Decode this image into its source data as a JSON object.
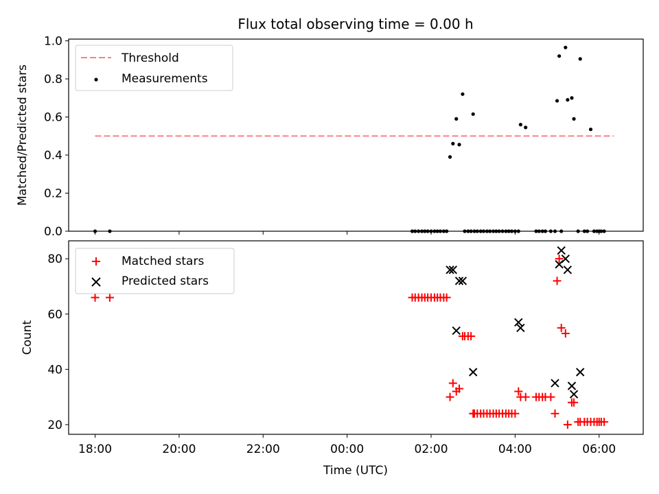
{
  "chart_data": [
    {
      "type": "scatter",
      "title": "Flux total observing time = 0.00 h",
      "xlabel": "",
      "ylabel": "Matched/Predicted stars",
      "xlim": [
        -0.63,
        13.05
      ],
      "ylim": [
        0.0,
        1.0
      ],
      "yticks": [
        0.0,
        0.2,
        0.4,
        0.6,
        0.8,
        1.0
      ],
      "ytick_labels": [
        "0.0",
        "0.2",
        "0.4",
        "0.6",
        "0.8",
        "1.0"
      ],
      "legend_location": "upper-left",
      "series": [
        {
          "name": "Threshold",
          "kind": "dashed-line",
          "color": "#ff7f7f",
          "x": [
            0.0,
            12.35
          ],
          "y": [
            0.5,
            0.5
          ]
        },
        {
          "name": "Measurements",
          "kind": "dot",
          "color": "#000000",
          "x": [
            0.0,
            0.35,
            7.55,
            7.62,
            7.7,
            7.78,
            7.85,
            7.92,
            8.0,
            8.08,
            8.15,
            8.22,
            8.3,
            8.37,
            8.45,
            8.52,
            8.6,
            8.67,
            8.75,
            8.8,
            8.88,
            8.95,
            9.0,
            9.03,
            9.1,
            9.18,
            9.25,
            9.33,
            9.4,
            9.48,
            9.55,
            9.62,
            9.7,
            9.78,
            9.85,
            9.92,
            10.0,
            10.08,
            10.13,
            10.25,
            10.5,
            10.57,
            10.65,
            10.72,
            10.85,
            10.95,
            11.0,
            11.05,
            11.1,
            11.2,
            11.25,
            11.35,
            11.4,
            11.5,
            11.55,
            11.65,
            11.72,
            11.8,
            11.88,
            11.95,
            12.0,
            12.05,
            12.12
          ],
          "y": [
            0.0,
            0.0,
            0.0,
            0.0,
            0.0,
            0.0,
            0.0,
            0.0,
            0.0,
            0.0,
            0.0,
            0.0,
            0.0,
            0.0,
            0.39,
            0.46,
            0.59,
            0.455,
            0.72,
            0.0,
            0.0,
            0.0,
            0.615,
            0.0,
            0.0,
            0.0,
            0.0,
            0.0,
            0.0,
            0.0,
            0.0,
            0.0,
            0.0,
            0.0,
            0.0,
            0.0,
            0.0,
            0.0,
            0.56,
            0.545,
            0.0,
            0.0,
            0.0,
            0.0,
            0.0,
            0.0,
            0.685,
            0.92,
            0.0,
            0.965,
            0.69,
            0.7,
            0.59,
            0.0,
            0.905,
            0.0,
            0.0,
            0.535,
            0.0,
            0.0,
            0.0,
            0.0,
            0.0
          ]
        }
      ]
    },
    {
      "type": "scatter",
      "title": "",
      "xlabel": "Time (UTC)",
      "ylabel": "Count",
      "xlim": [
        -0.63,
        13.05
      ],
      "ylim": [
        16.5,
        86.5
      ],
      "xticks": [
        0,
        2,
        4,
        6,
        8,
        10,
        12
      ],
      "xtick_labels": [
        "18:00",
        "20:00",
        "22:00",
        "00:00",
        "02:00",
        "04:00",
        "06:00"
      ],
      "yticks": [
        20,
        40,
        60,
        80
      ],
      "ytick_labels": [
        "20",
        "40",
        "60",
        "80"
      ],
      "legend_location": "upper-left",
      "series": [
        {
          "name": "Matched stars",
          "kind": "plus",
          "color": "#ff0000",
          "x": [
            0.0,
            0.35,
            7.55,
            7.62,
            7.7,
            7.78,
            7.85,
            7.92,
            8.0,
            8.08,
            8.15,
            8.22,
            8.3,
            8.37,
            8.45,
            8.52,
            8.6,
            8.67,
            8.75,
            8.8,
            8.88,
            8.95,
            9.0,
            9.03,
            9.1,
            9.18,
            9.25,
            9.33,
            9.4,
            9.48,
            9.55,
            9.62,
            9.7,
            9.78,
            9.85,
            9.92,
            10.0,
            10.08,
            10.13,
            10.25,
            10.5,
            10.57,
            10.65,
            10.72,
            10.85,
            10.95,
            11.0,
            11.05,
            11.1,
            11.2,
            11.25,
            11.35,
            11.4,
            11.5,
            11.55,
            11.65,
            11.72,
            11.8,
            11.88,
            11.95,
            12.0,
            12.05,
            12.12
          ],
          "y": [
            66,
            66,
            66,
            66,
            66,
            66,
            66,
            66,
            66,
            66,
            66,
            66,
            66,
            66,
            30,
            35,
            32,
            33,
            52,
            52,
            52,
            52,
            24,
            24,
            24,
            24,
            24,
            24,
            24,
            24,
            24,
            24,
            24,
            24,
            24,
            24,
            24,
            32,
            30,
            30,
            30,
            30,
            30,
            30,
            30,
            24,
            72,
            80,
            55,
            53,
            20,
            28,
            28,
            21,
            21,
            21,
            21,
            21,
            21,
            21,
            21,
            21,
            21
          ]
        },
        {
          "name": "Predicted stars",
          "kind": "x",
          "color": "#000000",
          "x": [
            8.45,
            8.52,
            8.6,
            8.67,
            8.75,
            9.0,
            10.08,
            10.13,
            10.95,
            11.05,
            11.1,
            11.2,
            11.25,
            11.35,
            11.4,
            11.55
          ],
          "y": [
            76,
            76,
            54,
            72,
            72,
            39,
            57,
            55,
            35,
            78,
            83,
            80,
            76,
            34,
            31,
            39
          ]
        }
      ]
    }
  ]
}
